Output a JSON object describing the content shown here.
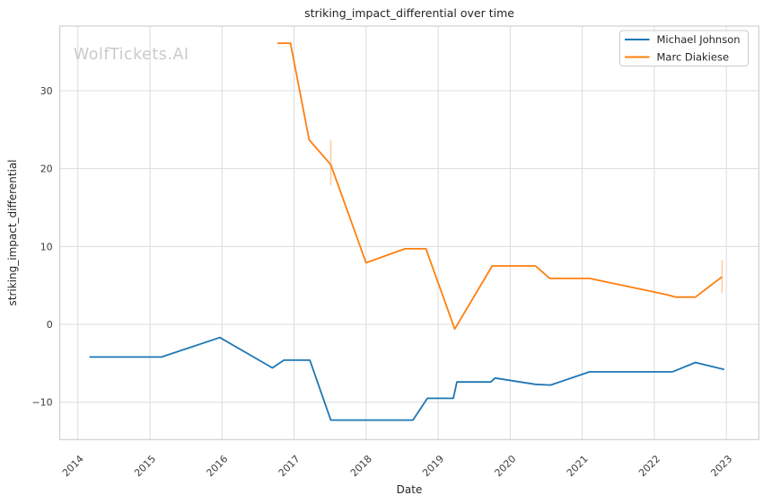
{
  "chart_data": {
    "type": "line",
    "title": "striking_impact_differential over time",
    "xlabel": "Date",
    "ylabel": "striking_impact_differential",
    "watermark": "WolfTickets.AI",
    "x_ticks": [
      2014,
      2015,
      2016,
      2017,
      2018,
      2019,
      2020,
      2021,
      2022,
      2023
    ],
    "y_ticks": [
      -10,
      0,
      10,
      20,
      30
    ],
    "xlim": [
      2013.75,
      2023.45
    ],
    "ylim": [
      -14.8,
      38.3
    ],
    "grid": true,
    "legend_position": "upper right",
    "colors": {
      "grid": "#dcdcdc",
      "frame": "#c7c7c7",
      "error_bar": "rgba(255,127,14,0.4)"
    },
    "series": [
      {
        "name": "Michael Johnson",
        "color": "#1f77b4",
        "points": [
          [
            2014.16,
            -4.2
          ],
          [
            2015.16,
            -4.2
          ],
          [
            2015.97,
            -1.7
          ],
          [
            2016.7,
            -5.6
          ],
          [
            2016.86,
            -4.6
          ],
          [
            2017.22,
            -4.6
          ],
          [
            2017.51,
            -12.3
          ],
          [
            2018.65,
            -12.3
          ],
          [
            2018.85,
            -9.5
          ],
          [
            2019.21,
            -9.5
          ],
          [
            2019.26,
            -7.4
          ],
          [
            2019.73,
            -7.4
          ],
          [
            2019.79,
            -6.9
          ],
          [
            2020.35,
            -7.7
          ],
          [
            2020.56,
            -7.8
          ],
          [
            2021.1,
            -6.1
          ],
          [
            2022.25,
            -6.1
          ],
          [
            2022.57,
            -4.9
          ],
          [
            2022.97,
            -5.8
          ]
        ],
        "error_bars": []
      },
      {
        "name": "Marc Diakiese",
        "color": "#ff7f0e",
        "points": [
          [
            2016.77,
            36.1
          ],
          [
            2016.95,
            36.1
          ],
          [
            2017.21,
            23.7
          ],
          [
            2017.51,
            20.5
          ],
          [
            2018.0,
            7.9
          ],
          [
            2018.54,
            9.7
          ],
          [
            2018.83,
            9.7
          ],
          [
            2019.23,
            -0.6
          ],
          [
            2019.75,
            7.5
          ],
          [
            2020.35,
            7.5
          ],
          [
            2020.55,
            5.9
          ],
          [
            2021.1,
            5.9
          ],
          [
            2022.18,
            3.8
          ],
          [
            2022.3,
            3.5
          ],
          [
            2022.57,
            3.5
          ],
          [
            2022.94,
            6.1
          ]
        ],
        "error_bars": [
          {
            "x": 2017.51,
            "low": 17.9,
            "high": 23.7
          },
          {
            "x": 2022.94,
            "low": 4.0,
            "high": 8.2
          }
        ]
      }
    ]
  }
}
